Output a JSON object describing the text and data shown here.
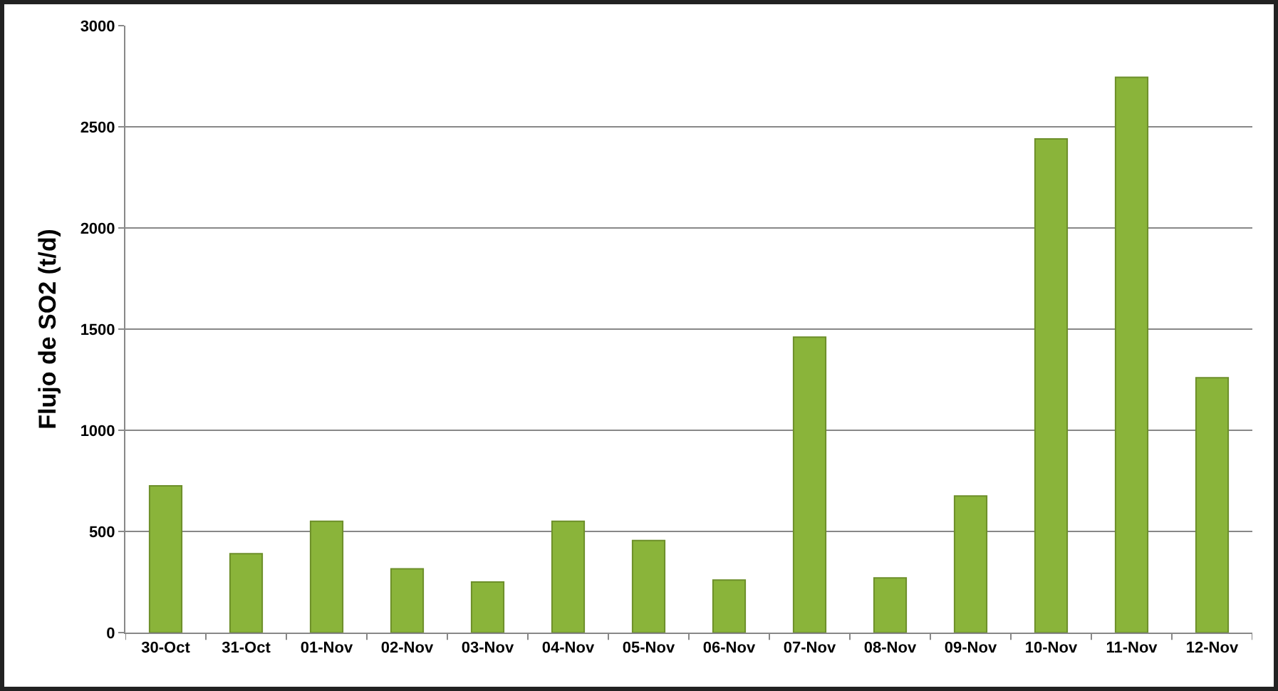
{
  "chart_data": {
    "type": "bar",
    "ylabel": "Flujo de SO2 (t/d)",
    "categories": [
      "30-Oct",
      "31-Oct",
      "01-Nov",
      "02-Nov",
      "03-Nov",
      "04-Nov",
      "05-Nov",
      "06-Nov",
      "07-Nov",
      "08-Nov",
      "09-Nov",
      "10-Nov",
      "11-Nov",
      "12-Nov"
    ],
    "values": [
      725,
      390,
      550,
      315,
      250,
      550,
      455,
      260,
      1460,
      270,
      675,
      2440,
      2745,
      1260
    ],
    "color": "#8ab43a",
    "ylim": [
      0,
      3000
    ],
    "yticks": [
      0,
      500,
      1000,
      1500,
      2000,
      2500,
      3000
    ],
    "grid": "y",
    "legend": false
  }
}
